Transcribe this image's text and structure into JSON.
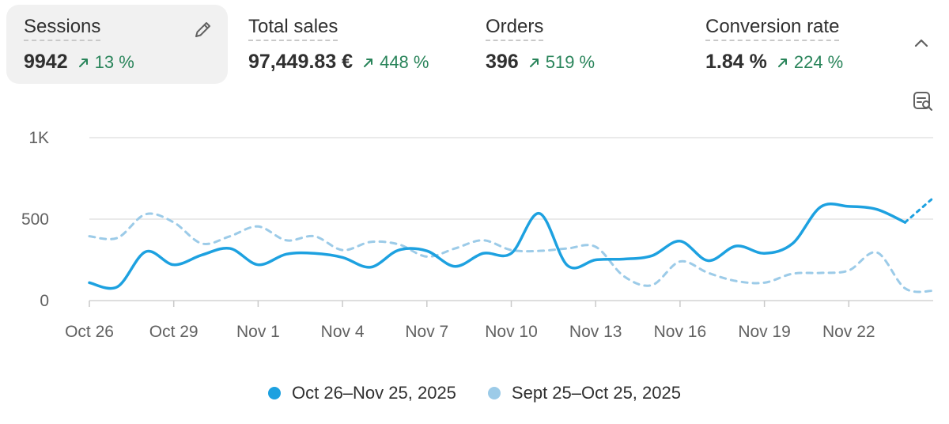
{
  "metrics": [
    {
      "label": "Sessions",
      "value": "9942",
      "change": "13 %"
    },
    {
      "label": "Total sales",
      "value": "97,449.83 €",
      "change": "448 %"
    },
    {
      "label": "Orders",
      "value": "396",
      "change": "519 %"
    },
    {
      "label": "Conversion rate",
      "value": "1.84 %",
      "change": "224 %"
    }
  ],
  "colors": {
    "current": "#1da1e0",
    "previous": "#9ccbe8",
    "positive": "#29845a",
    "grid": "#e3e3e3"
  },
  "icons": {
    "edit": "pencil-icon",
    "collapse": "chevron-up-icon",
    "settings": "chart-settings-icon",
    "trend": "arrow-up-right-icon"
  },
  "legend": {
    "current": "Oct 26–Nov 25, 2025",
    "previous": "Sept 25–Oct 25, 2025"
  },
  "chart_data": {
    "type": "line",
    "title": "",
    "xlabel": "",
    "ylabel": "",
    "ylim": [
      0,
      1000
    ],
    "y_ticks": [
      0,
      500,
      1000
    ],
    "y_tick_labels": [
      "0",
      "500",
      "1K"
    ],
    "grid": true,
    "legend_position": "bottom",
    "x_ticks": [
      "Oct 26",
      "Oct 29",
      "Nov 1",
      "Nov 4",
      "Nov 7",
      "Nov 10",
      "Nov 13",
      "Nov 16",
      "Nov 19",
      "Nov 22"
    ],
    "x_tick_index": [
      0,
      3,
      6,
      9,
      12,
      15,
      18,
      21,
      24,
      27
    ],
    "x": [
      "Oct 26",
      "Oct 27",
      "Oct 28",
      "Oct 29",
      "Oct 30",
      "Oct 31",
      "Nov 1",
      "Nov 2",
      "Nov 3",
      "Nov 4",
      "Nov 5",
      "Nov 6",
      "Nov 7",
      "Nov 8",
      "Nov 9",
      "Nov 10",
      "Nov 11",
      "Nov 12",
      "Nov 13",
      "Nov 14",
      "Nov 15",
      "Nov 16",
      "Nov 17",
      "Nov 18",
      "Nov 19",
      "Nov 20",
      "Nov 21",
      "Nov 22",
      "Nov 23",
      "Nov 24",
      "Nov 25"
    ],
    "series": [
      {
        "name": "Oct 26–Nov 25, 2025",
        "style": "solid",
        "partial_from_index": 29,
        "values": [
          110,
          85,
          300,
          220,
          280,
          320,
          220,
          285,
          290,
          265,
          205,
          310,
          305,
          210,
          290,
          290,
          535,
          215,
          250,
          255,
          275,
          365,
          245,
          335,
          290,
          350,
          575,
          578,
          560,
          480,
          630
        ]
      },
      {
        "name": "Sept 25–Oct 25, 2025",
        "style": "dashed",
        "values": [
          395,
          385,
          530,
          480,
          350,
          395,
          455,
          370,
          395,
          310,
          360,
          345,
          270,
          320,
          370,
          310,
          305,
          320,
          330,
          150,
          95,
          240,
          170,
          120,
          110,
          165,
          170,
          185,
          295,
          75,
          60
        ]
      }
    ]
  }
}
